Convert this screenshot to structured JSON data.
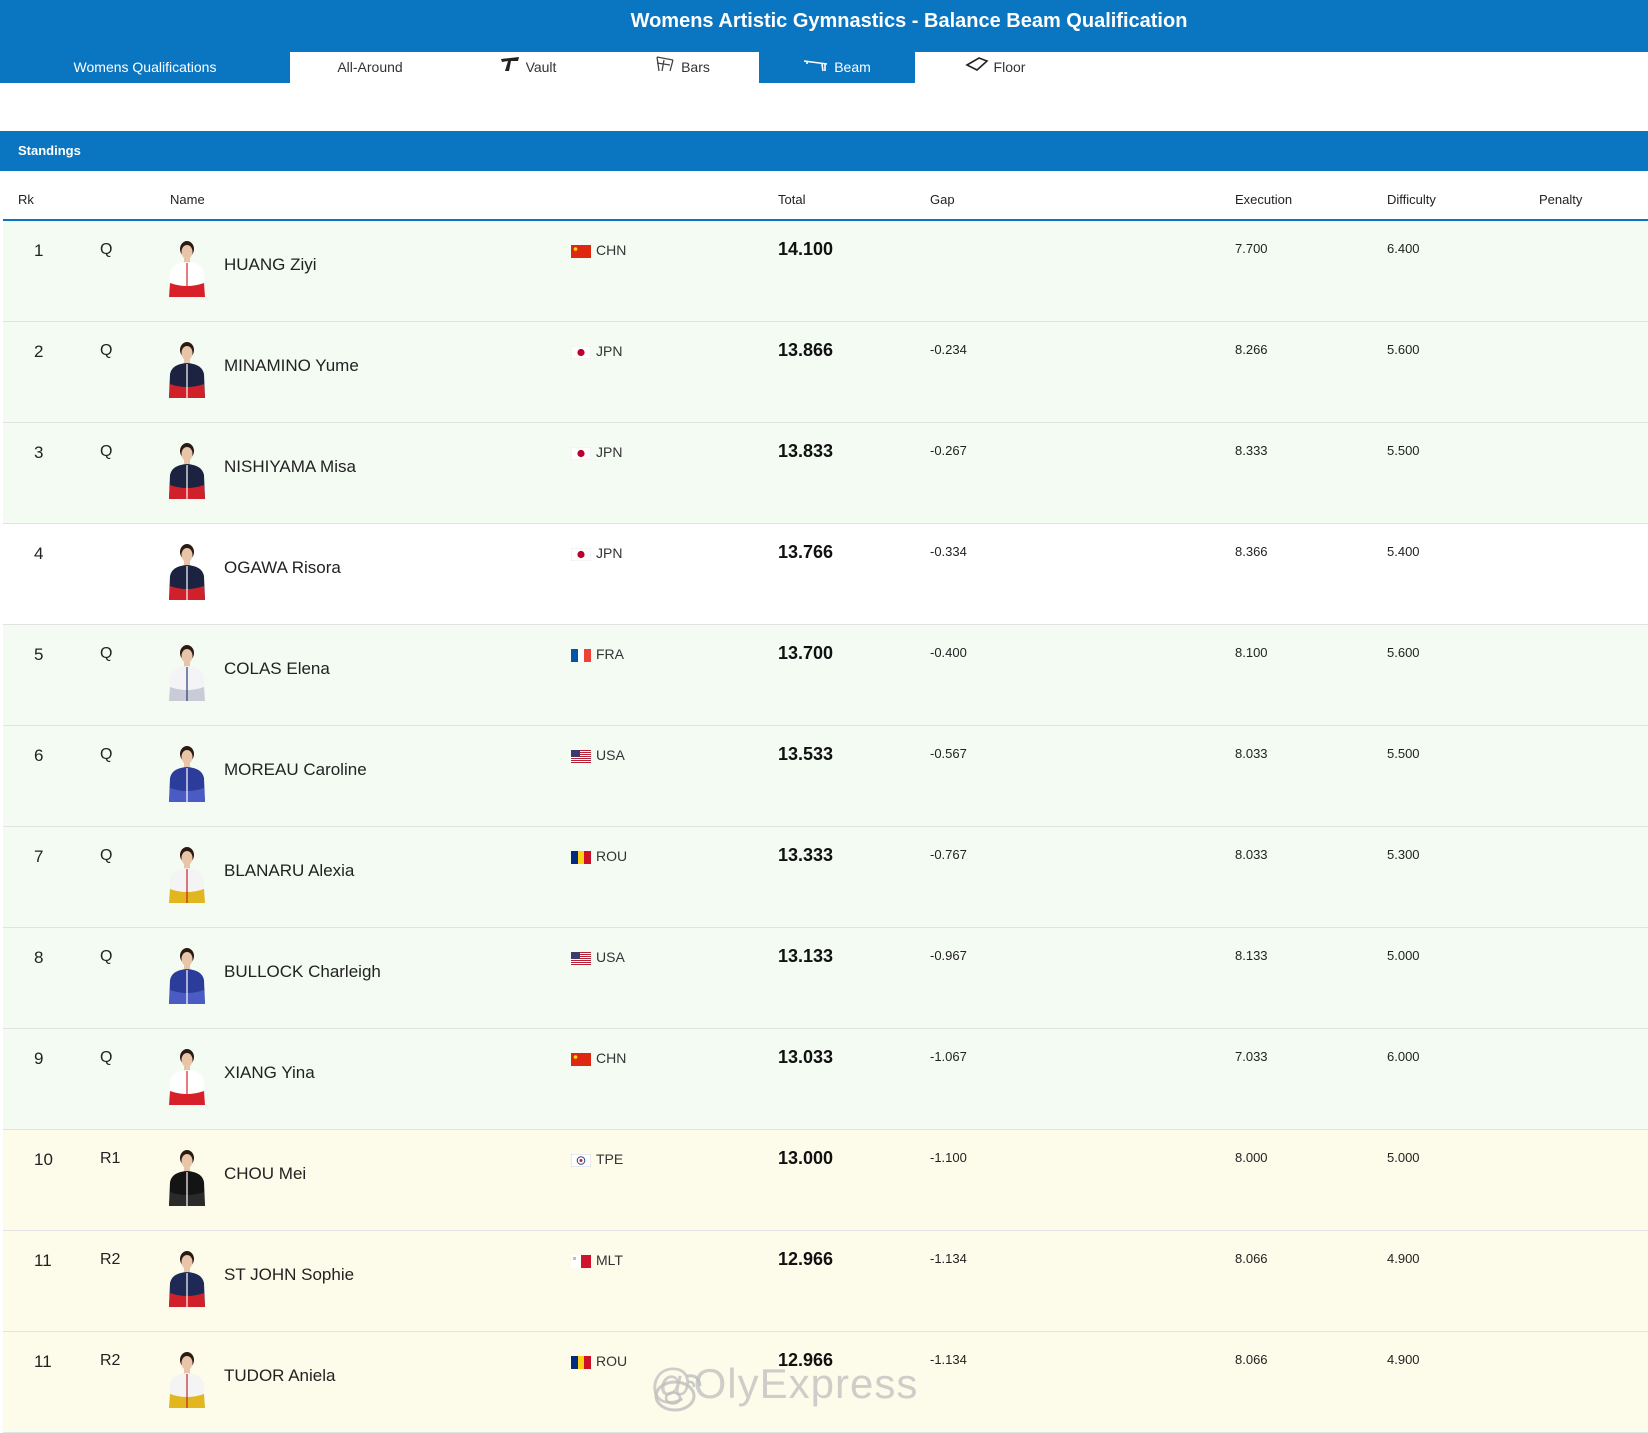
{
  "header": {
    "title": "Womens Artistic Gymnastics - Balance Beam Qualification"
  },
  "tabs": [
    {
      "label": "Womens Qualifications",
      "icon": "",
      "active": true
    },
    {
      "label": "All-Around",
      "icon": "",
      "active": false
    },
    {
      "label": "Vault",
      "icon": "vault-icon",
      "active": false
    },
    {
      "label": "Bars",
      "icon": "bars-icon",
      "active": false
    },
    {
      "label": "Beam",
      "icon": "beam-icon",
      "active": true
    },
    {
      "label": "Floor",
      "icon": "floor-icon",
      "active": false
    }
  ],
  "standings": {
    "label": "Standings"
  },
  "columns": {
    "rk": "Rk",
    "name": "Name",
    "total": "Total",
    "gap": "Gap",
    "execution": "Execution",
    "difficulty": "Difficulty",
    "penalty": "Penalty"
  },
  "rows": [
    {
      "rk": "1",
      "q": "Q",
      "name": "HUANG Ziyi",
      "noc": "CHN",
      "total": "14.100",
      "gap": "",
      "execution": "7.700",
      "difficulty": "6.400",
      "kit": "chn"
    },
    {
      "rk": "2",
      "q": "Q",
      "name": "MINAMINO Yume",
      "noc": "JPN",
      "total": "13.866",
      "gap": "-0.234",
      "execution": "8.266",
      "difficulty": "5.600",
      "kit": "jpn"
    },
    {
      "rk": "3",
      "q": "Q",
      "name": "NISHIYAMA Misa",
      "noc": "JPN",
      "total": "13.833",
      "gap": "-0.267",
      "execution": "8.333",
      "difficulty": "5.500",
      "kit": "jpn"
    },
    {
      "rk": "4",
      "q": "",
      "name": "OGAWA Risora",
      "noc": "JPN",
      "total": "13.766",
      "gap": "-0.334",
      "execution": "8.366",
      "difficulty": "5.400",
      "kit": "jpn"
    },
    {
      "rk": "5",
      "q": "Q",
      "name": "COLAS Elena",
      "noc": "FRA",
      "total": "13.700",
      "gap": "-0.400",
      "execution": "8.100",
      "difficulty": "5.600",
      "kit": "fra"
    },
    {
      "rk": "6",
      "q": "Q",
      "name": "MOREAU Caroline",
      "noc": "USA",
      "total": "13.533",
      "gap": "-0.567",
      "execution": "8.033",
      "difficulty": "5.500",
      "kit": "usa"
    },
    {
      "rk": "7",
      "q": "Q",
      "name": "BLANARU Alexia",
      "noc": "ROU",
      "total": "13.333",
      "gap": "-0.767",
      "execution": "8.033",
      "difficulty": "5.300",
      "kit": "rou"
    },
    {
      "rk": "8",
      "q": "Q",
      "name": "BULLOCK Charleigh",
      "noc": "USA",
      "total": "13.133",
      "gap": "-0.967",
      "execution": "8.133",
      "difficulty": "5.000",
      "kit": "usa"
    },
    {
      "rk": "9",
      "q": "Q",
      "name": "XIANG Yina",
      "noc": "CHN",
      "total": "13.033",
      "gap": "-1.067",
      "execution": "7.033",
      "difficulty": "6.000",
      "kit": "chn"
    },
    {
      "rk": "10",
      "q": "R1",
      "name": "CHOU Mei",
      "noc": "TPE",
      "total": "13.000",
      "gap": "-1.100",
      "execution": "8.000",
      "difficulty": "5.000",
      "kit": "tpe"
    },
    {
      "rk": "11",
      "q": "R2",
      "name": "ST JOHN Sophie",
      "noc": "MLT",
      "total": "12.966",
      "gap": "-1.134",
      "execution": "8.066",
      "difficulty": "4.900",
      "kit": "mlt"
    },
    {
      "rk": "11",
      "q": "R2",
      "name": "TUDOR Aniela",
      "noc": "ROU",
      "total": "12.966",
      "gap": "-1.134",
      "execution": "8.066",
      "difficulty": "4.900",
      "kit": "rou"
    }
  ],
  "watermark": "@OlyExpress",
  "colors": {
    "brand_blue": "#0a76c1",
    "qualified_row": "#f3fbf3",
    "reserve_row": "#fdfbe9"
  }
}
